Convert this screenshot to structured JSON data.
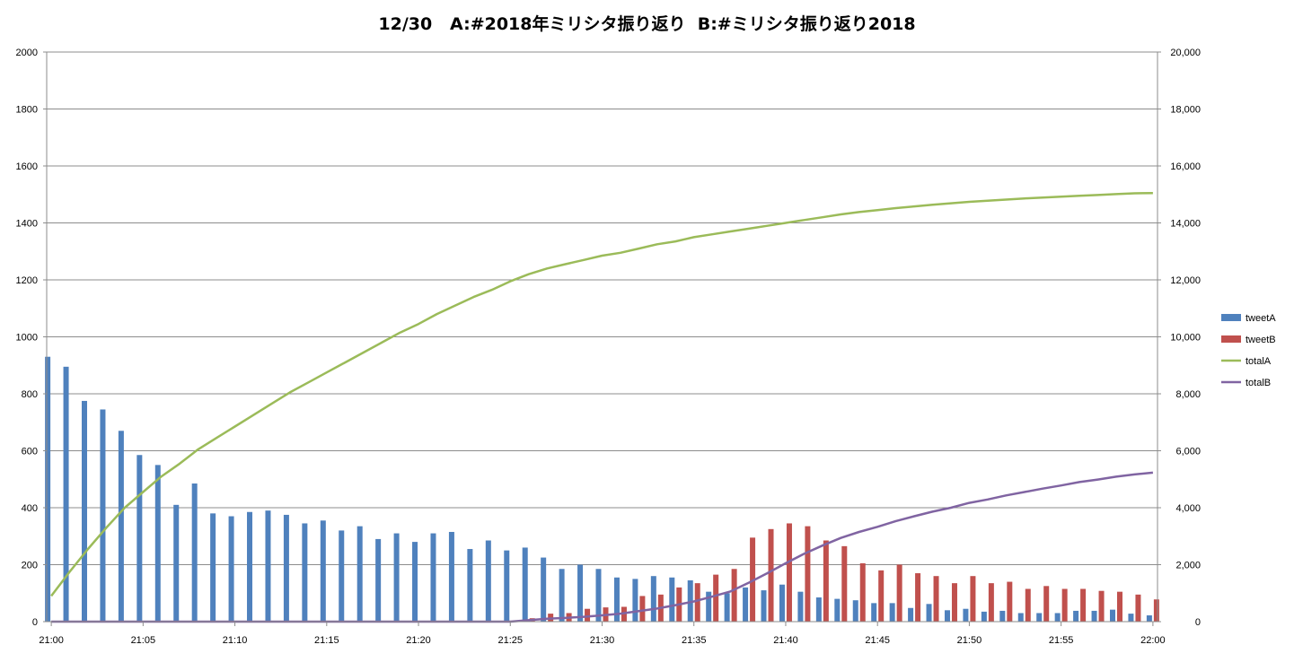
{
  "chart_data": {
    "type": "bar",
    "title": "12/30   A:#2018年ミリシタ振り返り  B:#ミリシタ振り返り2018",
    "categories": [
      "21:00",
      "21:01",
      "21:02",
      "21:03",
      "21:04",
      "21:05",
      "21:06",
      "21:07",
      "21:08",
      "21:09",
      "21:10",
      "21:11",
      "21:12",
      "21:13",
      "21:14",
      "21:15",
      "21:16",
      "21:17",
      "21:18",
      "21:19",
      "21:20",
      "21:21",
      "21:22",
      "21:23",
      "21:24",
      "21:25",
      "21:26",
      "21:27",
      "21:28",
      "21:29",
      "21:30",
      "21:31",
      "21:32",
      "21:33",
      "21:34",
      "21:35",
      "21:36",
      "21:37",
      "21:38",
      "21:39",
      "21:40",
      "21:41",
      "21:42",
      "21:43",
      "21:44",
      "21:45",
      "21:46",
      "21:47",
      "21:48",
      "21:49",
      "21:50",
      "21:51",
      "21:52",
      "21:53",
      "21:54",
      "21:55",
      "21:56",
      "21:57",
      "21:58",
      "21:59",
      "22:00"
    ],
    "x_tick_labels": [
      "21:00",
      "21:05",
      "21:10",
      "21:15",
      "21:20",
      "21:25",
      "21:30",
      "21:35",
      "21:40",
      "21:45",
      "21:50",
      "21:55",
      "22:00"
    ],
    "y_left": {
      "min": 0,
      "max": 2000,
      "step": 200,
      "ticks": [
        "0",
        "200",
        "400",
        "600",
        "800",
        "1000",
        "1200",
        "1400",
        "1600",
        "1800",
        "2000"
      ]
    },
    "y_right": {
      "min": 0,
      "max": 20000,
      "step": 2000,
      "ticks": [
        "0",
        "2,000",
        "4,000",
        "6,000",
        "8,000",
        "10,000",
        "12,000",
        "14,000",
        "16,000",
        "18,000",
        "20,000"
      ]
    },
    "grid": true,
    "legend_position": "right",
    "series": [
      {
        "name": "tweetA",
        "kind": "bar",
        "axis": "left",
        "color": "#4f81bd",
        "values": [
          930,
          895,
          775,
          745,
          670,
          585,
          550,
          410,
          485,
          380,
          370,
          385,
          390,
          375,
          345,
          355,
          320,
          335,
          290,
          310,
          280,
          310,
          315,
          255,
          285,
          250,
          260,
          225,
          185,
          200,
          185,
          155,
          150,
          160,
          155,
          145,
          105,
          100,
          120,
          110,
          130,
          105,
          85,
          80,
          75,
          65,
          65,
          48,
          62,
          40,
          45,
          35,
          38,
          30,
          30,
          30,
          38,
          38,
          42,
          28,
          22
        ]
      },
      {
        "name": "tweetB",
        "kind": "bar",
        "axis": "left",
        "color": "#c0504d",
        "values": [
          0,
          0,
          0,
          0,
          0,
          0,
          0,
          0,
          0,
          0,
          0,
          0,
          0,
          0,
          0,
          0,
          0,
          0,
          0,
          0,
          0,
          0,
          0,
          0,
          0,
          0,
          12,
          28,
          30,
          45,
          50,
          52,
          90,
          95,
          120,
          135,
          165,
          185,
          295,
          325,
          345,
          335,
          285,
          265,
          205,
          180,
          200,
          170,
          160,
          135,
          160,
          135,
          140,
          115,
          125,
          115,
          115,
          108,
          105,
          95,
          78
        ]
      },
      {
        "name": "totalA",
        "kind": "line",
        "axis": "right",
        "color": "#9bbb59",
        "values": [
          900,
          1750,
          2550,
          3300,
          4000,
          4550,
          5100,
          5550,
          6050,
          6450,
          6850,
          7250,
          7650,
          8050,
          8400,
          8750,
          9100,
          9450,
          9800,
          10150,
          10450,
          10800,
          11100,
          11400,
          11650,
          11950,
          12200,
          12400,
          12550,
          12700,
          12850,
          12950,
          13100,
          13250,
          13350,
          13500,
          13600,
          13700,
          13800,
          13900,
          14000,
          14100,
          14200,
          14300,
          14380,
          14450,
          14520,
          14580,
          14640,
          14690,
          14740,
          14780,
          14820,
          14860,
          14890,
          14920,
          14950,
          14980,
          15010,
          15040,
          15050
        ]
      },
      {
        "name": "totalB",
        "kind": "line",
        "axis": "right",
        "color": "#8064a2",
        "values": [
          0,
          0,
          0,
          0,
          0,
          0,
          0,
          0,
          0,
          0,
          0,
          0,
          0,
          0,
          0,
          0,
          0,
          0,
          0,
          0,
          0,
          0,
          0,
          0,
          0,
          0,
          50,
          100,
          130,
          170,
          220,
          280,
          370,
          460,
          580,
          710,
          880,
          1060,
          1370,
          1700,
          2050,
          2380,
          2670,
          2940,
          3150,
          3330,
          3530,
          3700,
          3860,
          4000,
          4170,
          4290,
          4430,
          4550,
          4670,
          4780,
          4900,
          4990,
          5090,
          5170,
          5230
        ]
      }
    ]
  }
}
